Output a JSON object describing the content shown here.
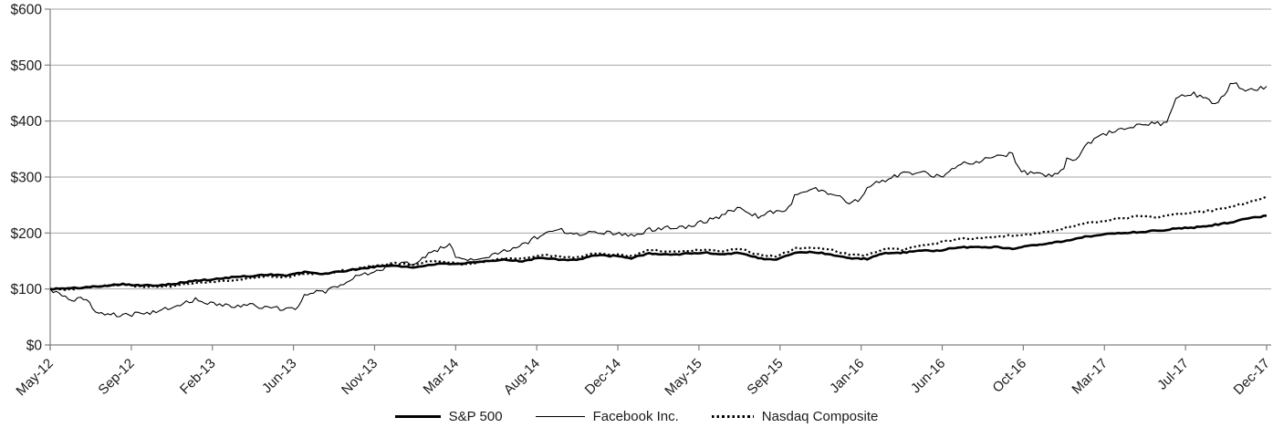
{
  "chart_data": {
    "type": "line",
    "title": "",
    "xlabel": "",
    "ylabel": "",
    "ylim": [
      0,
      600
    ],
    "y_ticks": [
      0,
      100,
      200,
      300,
      400,
      500,
      600
    ],
    "y_tick_labels": [
      "$0",
      "$100",
      "$200",
      "$300",
      "$400",
      "$500",
      "$600"
    ],
    "x_tick_labels": [
      "May-12",
      "Sep-12",
      "Feb-13",
      "Jun-13",
      "Nov-13",
      "Mar-14",
      "Aug-14",
      "Dec-14",
      "May-15",
      "Sep-15",
      "Jan-16",
      "Jun-16",
      "Oct-16",
      "Mar-17",
      "Jul-17",
      "Dec-17"
    ],
    "x_range": [
      "May-12",
      "Dec-17"
    ],
    "x_sampling": "monthly (68 points, May-12 through Dec-17), values indexed to $100 at May-12",
    "grid": "horizontal gray gridlines on",
    "legend_position": "bottom-center",
    "colors": {
      "series": "#000000",
      "grid": "#a6a6a6",
      "axis": "#808080",
      "text": "#1a1a1a",
      "background": "#ffffff"
    },
    "series": [
      {
        "name": "S&P 500",
        "style": "thick-solid",
        "monthly_values": [
          100,
          101,
          103,
          106,
          109,
          106,
          107,
          110,
          115,
          117,
          121,
          123,
          126,
          124,
          130,
          127,
          131,
          136,
          140,
          142,
          138,
          144,
          145,
          146,
          149,
          152,
          150,
          156,
          153,
          152,
          160,
          159,
          155,
          164,
          161,
          163,
          165,
          162,
          165,
          155,
          152,
          165,
          166,
          162,
          155,
          154,
          164,
          165,
          168,
          169,
          174,
          175,
          175,
          172,
          178,
          182,
          186,
          193,
          198,
          200,
          202,
          204,
          208,
          210,
          214,
          219,
          226,
          231
        ]
      },
      {
        "name": "Facebook Inc.",
        "style": "thin-solid",
        "monthly_values": [
          100,
          80,
          84,
          57,
          53,
          55,
          60,
          70,
          81,
          73,
          70,
          72,
          66,
          64,
          90,
          95,
          105,
          125,
          132,
          143,
          147,
          165,
          180,
          152,
          155,
          168,
          180,
          195,
          207,
          196,
          204,
          200,
          196,
          206,
          210,
          212,
          220,
          232,
          248,
          228,
          240,
          265,
          280,
          272,
          255,
          285,
          295,
          305,
          310,
          300,
          322,
          328,
          334,
          342,
          308,
          303,
          330,
          355,
          375,
          388,
          393,
          395,
          442,
          448,
          435,
          470,
          455,
          462
        ]
      },
      {
        "name": "Nasdaq Composite",
        "style": "dotted",
        "monthly_values": [
          100,
          100,
          102,
          106,
          108,
          104,
          105,
          106,
          111,
          112,
          116,
          119,
          123,
          121,
          128,
          126,
          132,
          137,
          142,
          146,
          143,
          150,
          147,
          144,
          149,
          155,
          154,
          161,
          158,
          156,
          164,
          162,
          158,
          170,
          167,
          168,
          171,
          168,
          172,
          161,
          158,
          172,
          174,
          171,
          161,
          160,
          172,
          170,
          178,
          183,
          189,
          191,
          193,
          196,
          198,
          203,
          210,
          218,
          222,
          226,
          230,
          228,
          234,
          237,
          240,
          247,
          254,
          265
        ]
      }
    ]
  }
}
